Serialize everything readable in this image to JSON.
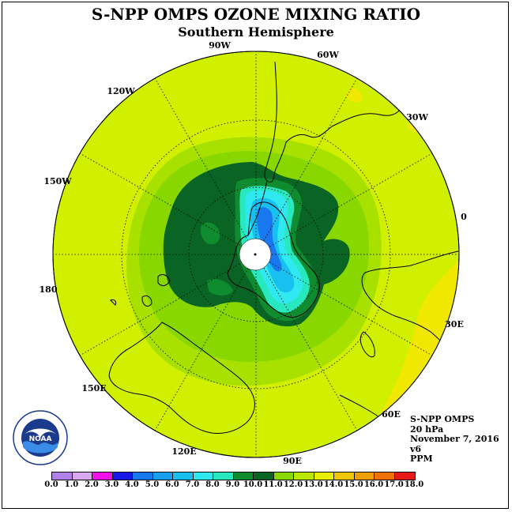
{
  "title": "S-NPP OMPS OZONE MIXING RATIO",
  "subtitle": "Southern Hemisphere",
  "longitude_labels": [
    "90W",
    "60W",
    "30W",
    "0",
    "30E",
    "60E",
    "90E",
    "120E",
    "150E",
    "180",
    "150W",
    "120W"
  ],
  "info": {
    "instrument": "S-NPP OMPS",
    "level": "20 hPa",
    "date": "November 7, 2016",
    "version": "v6",
    "units": "PPM"
  },
  "logo": {
    "name": "noaa-logo",
    "text": "NOAA",
    "ring_text": "NATIONAL OCEANIC AND ATMOSPHERIC ADMINISTRATION · U.S. DEPARTMENT OF COMMERCE"
  },
  "colorbar": {
    "labels": [
      "0.0",
      "1.0",
      "2.0",
      "3.0",
      "4.0",
      "5.0",
      "6.0",
      "7.0",
      "8.0",
      "9.0",
      "10.0",
      "11.0",
      "12.0",
      "13.0",
      "14.0",
      "15.0",
      "16.0",
      "17.0",
      "18.0"
    ],
    "colors": [
      "#b07fe8",
      "#d9a8f0",
      "#f010e8",
      "#1818e8",
      "#1878f0",
      "#18a0f0",
      "#18c0f0",
      "#30e8f0",
      "#28e8c0",
      "#108c30",
      "#0a6424",
      "#88d800",
      "#b8e800",
      "#e8f000",
      "#f0c800",
      "#f0a000",
      "#f07000",
      "#e81818",
      "#8c5030"
    ]
  },
  "colors": {
    "background_field": "#d0f000",
    "band_11": "#a8e000",
    "band_10": "#88d800",
    "band_9": "#0a6424",
    "band_8": "#108c30",
    "band_7": "#28e8c0",
    "band_6": "#30e8f0",
    "band_5": "#18c0f0",
    "band_13": "#f0e800"
  }
}
